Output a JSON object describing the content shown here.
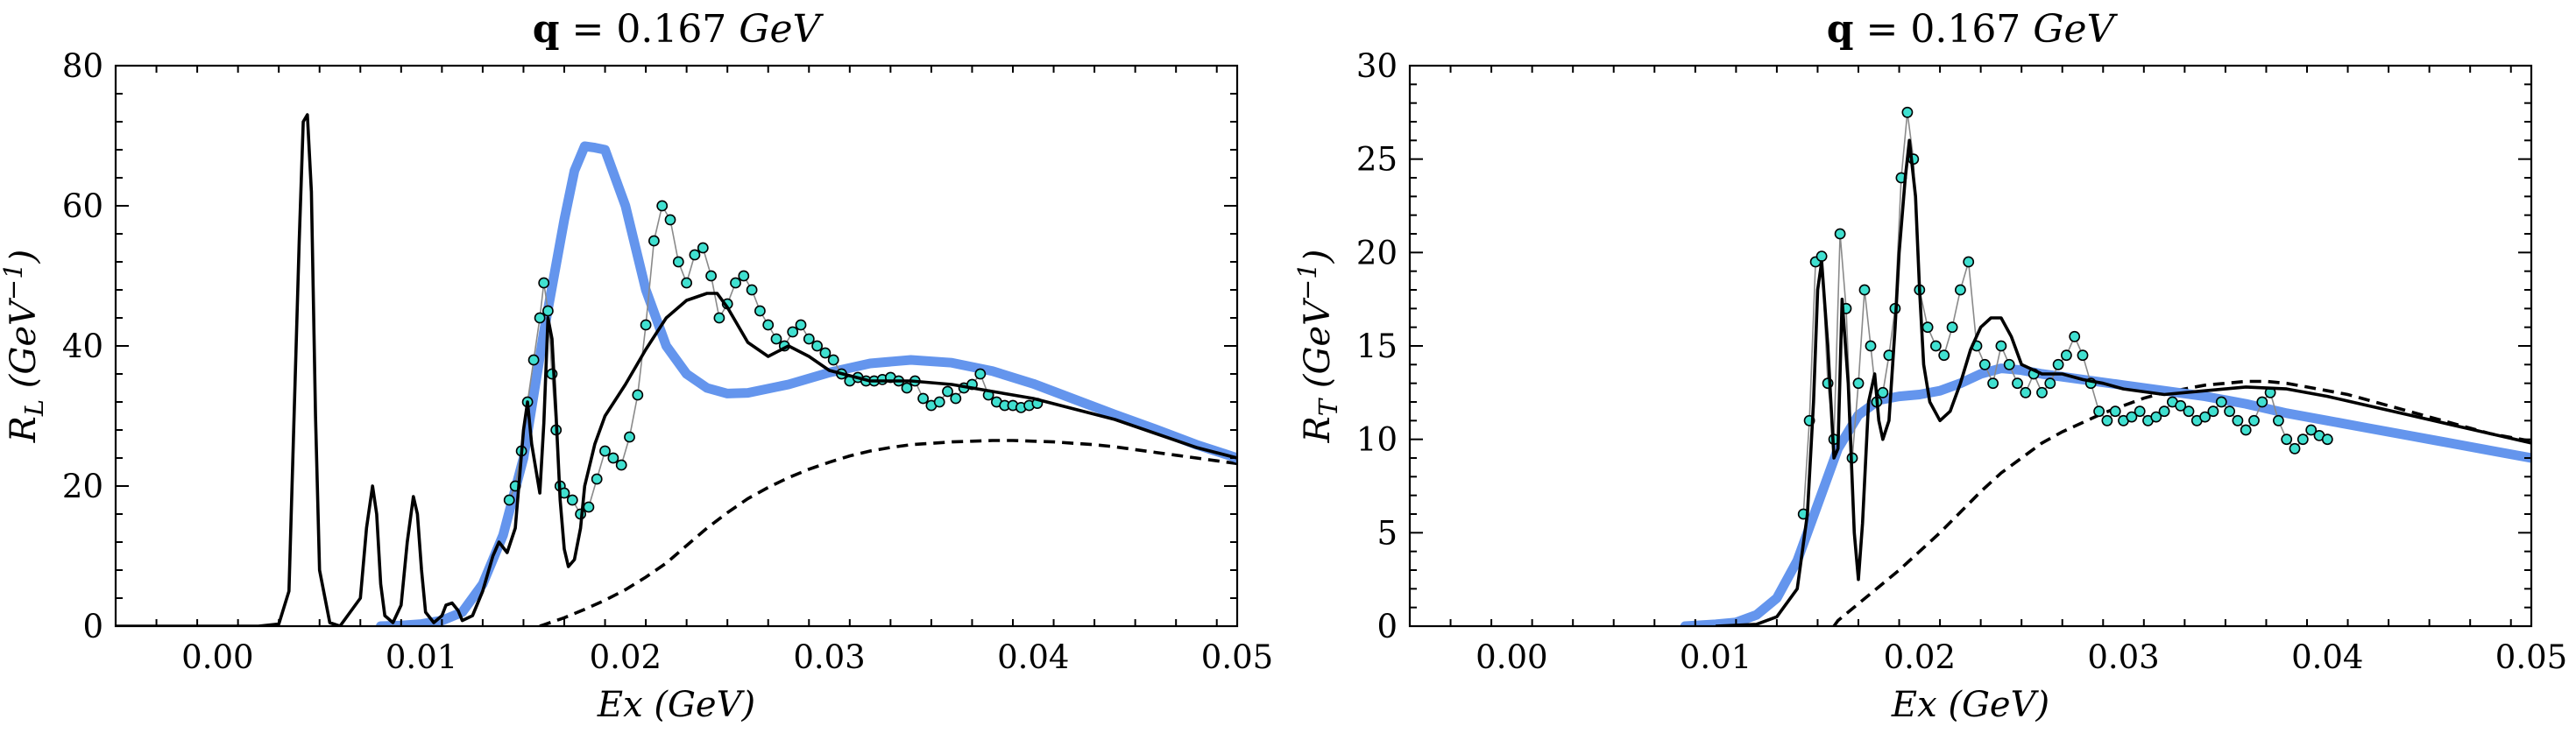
{
  "chart_data": [
    {
      "type": "line",
      "title_prefix": "q",
      "title_rest": " = 0.167 ",
      "title_unit": "GeV",
      "xlabel_var": "Ex",
      "xlabel_unit": " (GeV)",
      "ylabel_var": "R",
      "ylabel_sub": "L",
      "ylabel_unit": "GeV",
      "ylabel_exp": "−1",
      "xlim": [
        -0.005,
        0.05
      ],
      "ylim": [
        0,
        80
      ],
      "xticks": [
        0.0,
        0.01,
        0.02,
        0.03,
        0.04,
        0.05
      ],
      "xtick_labels": [
        "0.00",
        "0.01",
        "0.02",
        "0.03",
        "0.04",
        "0.05"
      ],
      "yticks": [
        0,
        20,
        40,
        60,
        80
      ],
      "ytick_labels": [
        "0",
        "20",
        "40",
        "60",
        "80"
      ],
      "series": [
        {
          "style": "thick-blue",
          "color": "#6495ED",
          "x": [
            0.008,
            0.009,
            0.01,
            0.011,
            0.012,
            0.013,
            0.014,
            0.015,
            0.016,
            0.017,
            0.0175,
            0.018,
            0.0185,
            0.019,
            0.02,
            0.021,
            0.022,
            0.023,
            0.024,
            0.025,
            0.026,
            0.028,
            0.03,
            0.032,
            0.034,
            0.036,
            0.038,
            0.04,
            0.042,
            0.044,
            0.046,
            0.048,
            0.05
          ],
          "y": [
            0,
            0.1,
            0.3,
            0.8,
            2,
            6,
            13,
            24,
            42,
            58,
            65,
            68.5,
            68.3,
            68,
            60,
            48,
            40,
            36,
            34,
            33.2,
            33.3,
            34.5,
            36.2,
            37.5,
            38,
            37.6,
            36.4,
            34.6,
            32.4,
            30.2,
            28.1,
            25.9,
            24
          ]
        },
        {
          "style": "solid-black",
          "color": "#000000",
          "x": [
            -0.005,
            0.002,
            0.003,
            0.0035,
            0.004,
            0.0042,
            0.0044,
            0.0046,
            0.0048,
            0.005,
            0.0055,
            0.006,
            0.007,
            0.0073,
            0.0076,
            0.0078,
            0.008,
            0.0082,
            0.0086,
            0.009,
            0.0093,
            0.0096,
            0.0098,
            0.01,
            0.0102,
            0.0106,
            0.011,
            0.0112,
            0.0115,
            0.0118,
            0.012,
            0.0125,
            0.013,
            0.0135,
            0.0138,
            0.0142,
            0.0146,
            0.015,
            0.0152,
            0.0154,
            0.0158,
            0.016,
            0.0162,
            0.0164,
            0.0166,
            0.0168,
            0.017,
            0.0172,
            0.0175,
            0.0178,
            0.018,
            0.0185,
            0.019,
            0.02,
            0.021,
            0.022,
            0.023,
            0.024,
            0.0245,
            0.025,
            0.026,
            0.027,
            0.028,
            0.029,
            0.03,
            0.032,
            0.034,
            0.036,
            0.038,
            0.04,
            0.042,
            0.044,
            0.046,
            0.048,
            0.05
          ],
          "y": [
            0,
            0,
            0.3,
            5,
            55,
            72,
            73,
            62,
            30,
            8,
            0.5,
            0,
            4,
            14,
            20,
            16,
            6,
            1.5,
            0.5,
            3,
            12,
            18.5,
            16,
            8,
            2,
            0.5,
            1.5,
            3,
            3.3,
            2.2,
            0.8,
            1.5,
            5,
            10,
            12,
            10.5,
            14,
            28,
            32,
            26,
            19,
            29,
            44,
            41,
            30,
            18,
            11,
            8.5,
            9.5,
            14,
            20,
            26,
            30,
            34.5,
            39.5,
            44,
            46.5,
            47.5,
            47.5,
            45.5,
            40.5,
            38.5,
            40,
            38.5,
            36.5,
            35,
            35,
            34.5,
            33.5,
            32.5,
            31,
            29.5,
            27.5,
            25.5,
            24
          ]
        },
        {
          "style": "dashed-black",
          "color": "#000000",
          "x": [
            0.0158,
            0.016,
            0.017,
            0.018,
            0.019,
            0.02,
            0.021,
            0.022,
            0.023,
            0.024,
            0.025,
            0.026,
            0.027,
            0.028,
            0.029,
            0.03,
            0.031,
            0.032,
            0.033,
            0.034,
            0.035,
            0.036,
            0.037,
            0.038,
            0.039,
            0.04,
            0.041,
            0.042,
            0.043,
            0.044,
            0.045,
            0.046,
            0.047,
            0.048,
            0.049,
            0.05
          ],
          "y": [
            0,
            0.2,
            1.2,
            2.4,
            3.7,
            5.2,
            7,
            9,
            11.5,
            14,
            16.2,
            18.2,
            19.8,
            21.2,
            22.4,
            23.4,
            24.3,
            25,
            25.5,
            25.9,
            26.1,
            26.3,
            26.4,
            26.5,
            26.5,
            26.4,
            26.3,
            26.1,
            25.9,
            25.6,
            25.2,
            24.8,
            24.4,
            24,
            23.6,
            23.2
          ]
        },
        {
          "style": "markers-cyan",
          "color": "#40E0D0",
          "x": [
            0.0143,
            0.0146,
            0.0149,
            0.0152,
            0.0155,
            0.0158,
            0.016,
            0.0162,
            0.0164,
            0.0166,
            0.0168,
            0.017,
            0.0174,
            0.0178,
            0.0182,
            0.0186,
            0.019,
            0.0194,
            0.0198,
            0.0202,
            0.0206,
            0.021,
            0.0214,
            0.0218,
            0.0222,
            0.0226,
            0.023,
            0.0234,
            0.0238,
            0.0242,
            0.0246,
            0.025,
            0.0254,
            0.0258,
            0.0262,
            0.0266,
            0.027,
            0.0274,
            0.0278,
            0.0282,
            0.0286,
            0.029,
            0.0294,
            0.0298,
            0.0302,
            0.0306,
            0.031,
            0.0314,
            0.0318,
            0.0322,
            0.0326,
            0.033,
            0.0334,
            0.0338,
            0.0342,
            0.0346,
            0.035,
            0.0354,
            0.0358,
            0.0362,
            0.0366,
            0.037,
            0.0374,
            0.0378,
            0.0382,
            0.0386,
            0.039,
            0.0394,
            0.0398,
            0.0402
          ],
          "y": [
            18,
            20,
            25,
            32,
            38,
            44,
            49,
            45,
            36,
            28,
            20,
            19,
            18,
            16,
            17,
            21,
            25,
            24,
            23,
            27,
            33,
            43,
            55,
            60,
            58,
            52,
            49,
            53,
            54,
            50,
            44,
            46,
            49,
            50,
            48,
            45,
            43,
            41,
            40,
            42,
            43,
            41,
            40,
            39,
            38,
            36,
            35,
            35.5,
            35,
            35,
            35.2,
            35.5,
            35,
            34,
            35,
            32.5,
            31.5,
            32,
            33.5,
            32.5,
            34,
            34.5,
            36,
            33,
            32,
            31.5,
            31.5,
            31.2,
            31.5,
            31.8
          ]
        }
      ]
    },
    {
      "type": "line",
      "title_prefix": "q",
      "title_rest": " = 0.167 ",
      "title_unit": "GeV",
      "xlabel_var": "Ex",
      "xlabel_unit": " (GeV)",
      "ylabel_var": "R",
      "ylabel_sub": "T",
      "ylabel_unit": "GeV",
      "ylabel_exp": "−1",
      "xlim": [
        -0.005,
        0.05
      ],
      "ylim": [
        0,
        30
      ],
      "xticks": [
        0.0,
        0.01,
        0.02,
        0.03,
        0.04,
        0.05
      ],
      "xtick_labels": [
        "0.00",
        "0.01",
        "0.02",
        "0.03",
        "0.04",
        "0.05"
      ],
      "yticks": [
        0,
        5,
        10,
        15,
        20,
        25,
        30
      ],
      "ytick_labels": [
        "0",
        "5",
        "10",
        "15",
        "20",
        "25",
        "30"
      ],
      "series": [
        {
          "style": "thick-blue",
          "color": "#6495ED",
          "x": [
            0.0085,
            0.01,
            0.011,
            0.012,
            0.013,
            0.014,
            0.015,
            0.016,
            0.017,
            0.018,
            0.019,
            0.02,
            0.021,
            0.022,
            0.023,
            0.024,
            0.025,
            0.026,
            0.028,
            0.03,
            0.032,
            0.034,
            0.036,
            0.038,
            0.04,
            0.042,
            0.044,
            0.046,
            0.048,
            0.05
          ],
          "y": [
            0,
            0.1,
            0.2,
            0.6,
            1.5,
            3.5,
            6.5,
            9.5,
            11.3,
            12.1,
            12.3,
            12.4,
            12.6,
            13,
            13.5,
            13.8,
            13.7,
            13.5,
            13.2,
            12.9,
            12.6,
            12.3,
            11.9,
            11.4,
            11,
            10.6,
            10.2,
            9.8,
            9.4,
            9
          ]
        },
        {
          "style": "solid-black",
          "color": "#000000",
          "x": [
            0.01,
            0.012,
            0.013,
            0.014,
            0.0145,
            0.0148,
            0.015,
            0.0152,
            0.0155,
            0.0158,
            0.016,
            0.0162,
            0.0165,
            0.0168,
            0.017,
            0.0172,
            0.0175,
            0.0178,
            0.018,
            0.0182,
            0.0185,
            0.0188,
            0.019,
            0.0193,
            0.0195,
            0.0198,
            0.02,
            0.0202,
            0.0205,
            0.021,
            0.0215,
            0.022,
            0.0225,
            0.023,
            0.0235,
            0.024,
            0.0245,
            0.025,
            0.026,
            0.027,
            0.028,
            0.029,
            0.03,
            0.032,
            0.034,
            0.036,
            0.038,
            0.04,
            0.042,
            0.044,
            0.046,
            0.048,
            0.05
          ],
          "y": [
            0,
            0.1,
            0.5,
            2,
            6,
            12,
            18,
            19.5,
            15,
            9,
            9.5,
            17.5,
            13,
            5,
            2.5,
            5.5,
            12,
            13.5,
            11,
            10,
            11,
            16,
            20,
            24,
            26,
            23,
            18,
            14,
            12,
            11,
            11.5,
            13,
            14.8,
            16,
            16.5,
            16.5,
            15.5,
            14,
            13.5,
            13.5,
            13.2,
            13,
            12.7,
            12.4,
            12.6,
            12.8,
            12.7,
            12.3,
            11.8,
            11.3,
            10.8,
            10.3,
            9.8
          ]
        },
        {
          "style": "dashed-black",
          "color": "#000000",
          "x": [
            0.0158,
            0.016,
            0.017,
            0.018,
            0.019,
            0.02,
            0.021,
            0.022,
            0.023,
            0.024,
            0.025,
            0.026,
            0.027,
            0.028,
            0.029,
            0.03,
            0.031,
            0.032,
            0.033,
            0.034,
            0.035,
            0.036,
            0.037,
            0.038,
            0.039,
            0.04,
            0.041,
            0.042,
            0.043,
            0.044,
            0.045,
            0.046,
            0.047,
            0.048,
            0.049,
            0.05
          ],
          "y": [
            0,
            0.3,
            1.2,
            2.1,
            3,
            4,
            5,
            6.1,
            7.2,
            8.2,
            9,
            9.8,
            10.4,
            10.9,
            11.4,
            11.8,
            12.2,
            12.5,
            12.7,
            12.9,
            13,
            13.1,
            13.1,
            13,
            12.8,
            12.6,
            12.4,
            12.1,
            11.8,
            11.5,
            11.2,
            10.9,
            10.6,
            10.3,
            10.1,
            9.9
          ]
        },
        {
          "style": "markers-cyan",
          "color": "#40E0D0",
          "x": [
            0.0143,
            0.0146,
            0.0149,
            0.0152,
            0.0155,
            0.0158,
            0.0161,
            0.0164,
            0.0167,
            0.017,
            0.0173,
            0.0176,
            0.0179,
            0.0182,
            0.0185,
            0.0188,
            0.0191,
            0.0194,
            0.0197,
            0.02,
            0.0204,
            0.0208,
            0.0212,
            0.0216,
            0.022,
            0.0224,
            0.0228,
            0.0232,
            0.0236,
            0.024,
            0.0244,
            0.0248,
            0.0252,
            0.0256,
            0.026,
            0.0264,
            0.0268,
            0.0272,
            0.0276,
            0.028,
            0.0284,
            0.0288,
            0.0292,
            0.0296,
            0.03,
            0.0304,
            0.0308,
            0.0312,
            0.0316,
            0.032,
            0.0324,
            0.0328,
            0.0332,
            0.0336,
            0.034,
            0.0344,
            0.0348,
            0.0352,
            0.0356,
            0.036,
            0.0364,
            0.0368,
            0.0372,
            0.0376,
            0.038,
            0.0384,
            0.0388,
            0.0392,
            0.0396,
            0.04
          ],
          "y": [
            6,
            11,
            19.5,
            19.8,
            13,
            10,
            21,
            17,
            9,
            13,
            18,
            15,
            12,
            12.5,
            14.5,
            17,
            24,
            27.5,
            25,
            18,
            16,
            15,
            14.5,
            16,
            18,
            19.5,
            15,
            14,
            13,
            15,
            14,
            13,
            12.5,
            13.5,
            12.5,
            13,
            14,
            14.5,
            15.5,
            14.5,
            13,
            11.5,
            11,
            11.5,
            11,
            11.2,
            11.5,
            11,
            11.2,
            11.5,
            12,
            11.8,
            11.5,
            11,
            11.2,
            11.5,
            12,
            11.5,
            11,
            10.5,
            11,
            12,
            12.5,
            11,
            10,
            9.5,
            10,
            10.5,
            10.2,
            10
          ]
        }
      ]
    }
  ]
}
